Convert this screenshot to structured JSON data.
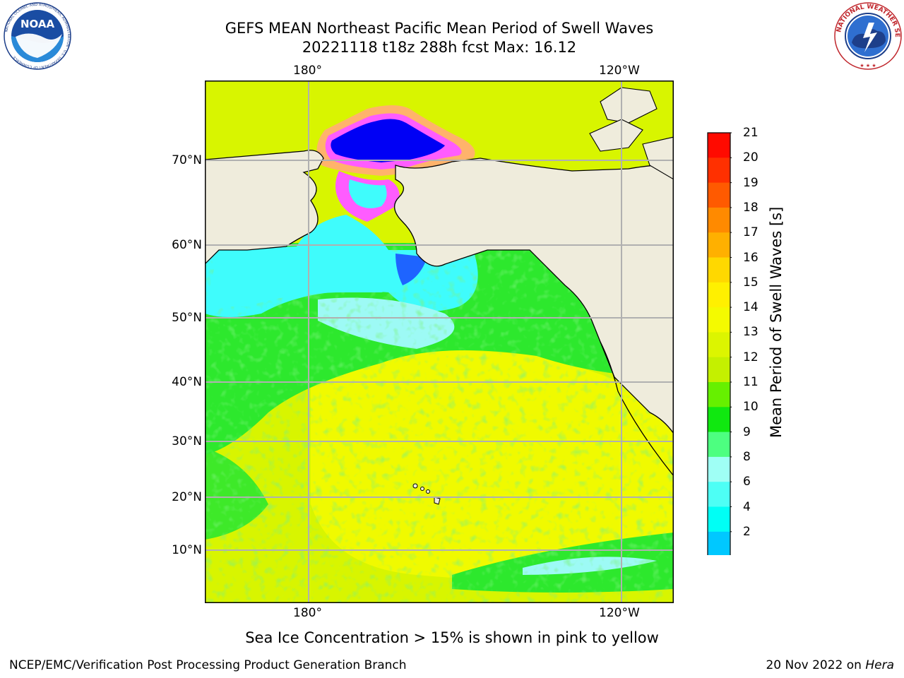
{
  "header": {
    "title_line1": "GEFS MEAN Northeast Pacific Mean Period of Swell Waves",
    "title_line2": "20221118 t18z 288h fcst   Max: 16.12"
  },
  "map": {
    "lon_labels_top": [
      "180°",
      "120°W"
    ],
    "lon_labels_bottom": [
      "180°",
      "120°W"
    ],
    "lat_labels": [
      "70°N",
      "60°N",
      "50°N",
      "40°N",
      "30°N",
      "20°N",
      "10°N"
    ],
    "colors": {
      "land": "#efecdc",
      "grid": "#b0b0b0",
      "ocean_tropics": "#d8f500",
      "ocean_subtrop": "#f0fa00",
      "ocean_green": "#2de82d",
      "ocean_cyan": "#3ffcfc",
      "ocean_paleblue": "#9dfaf5",
      "arctic_blue": "#0000f5",
      "ice_pink": "#ff5cff",
      "ice_orange": "#ffb36b"
    }
  },
  "colorbar": {
    "title": "Mean Period of Swell Waves [s]",
    "labels": [
      "21",
      "20",
      "19",
      "18",
      "17",
      "16",
      "15",
      "14",
      "13",
      "12",
      "11",
      "10",
      "9",
      "8",
      "6",
      "4",
      "2"
    ],
    "colors_top_to_bottom": [
      "#ff0a00",
      "#ff3000",
      "#ff5a00",
      "#ff8a00",
      "#ffb000",
      "#ffd800",
      "#fff000",
      "#f4fa00",
      "#dcf500",
      "#c4f000",
      "#66f000",
      "#10e810",
      "#4dff80",
      "#9ffff5",
      "#4dfff5",
      "#00fff5",
      "#00c8ff",
      "#0070ff"
    ],
    "extend_color": "#0000ff"
  },
  "footer": {
    "note": "Sea Ice Concentration > 15% is shown in pink to yellow",
    "credit_left": "NCEP/EMC/Verification Post Processing Product Generation Branch",
    "credit_right_date": "20 Nov 2022 on ",
    "credit_right_host": "Hera"
  },
  "logos": {
    "noaa_text": "NOAA",
    "noaa_ring": "NATIONAL OCEANIC AND ATMOSPHERIC ADMINISTRATION · U.S. DEPARTMENT OF COMMERCE",
    "nws_ring": "NATIONAL WEATHER SERVICE"
  }
}
